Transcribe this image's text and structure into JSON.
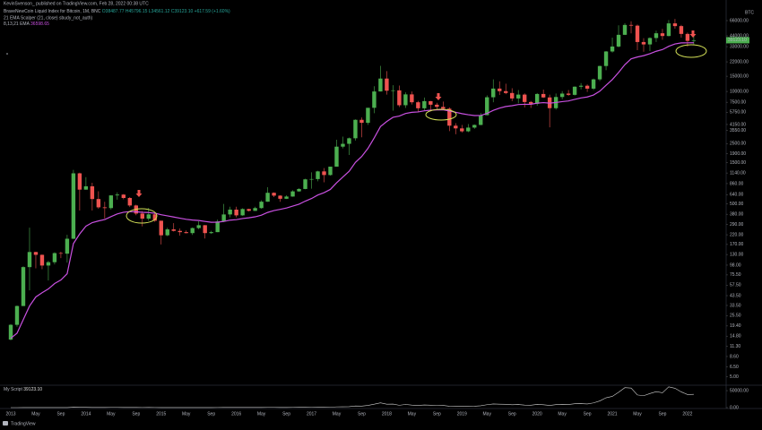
{
  "header": {
    "publisher": "KevinSvenson_ published on TradingView.com, Feb 28, 2022 00:38 UTC",
    "symbol": "BraveNewCoin Liquid Index for Bitcoin, 1M, BNC",
    "ohlc_text": "O38487.77 H45796.15 L34561.12 C39123.10 +617.59 (+1.60%)",
    "indicator_1": "21 EMA Scalper (21, close) sbudy_not_auth)",
    "indicator_2": "8,13,21 EMA",
    "indicator_2_value": "36598.65"
  },
  "chart_data": [
    {
      "type": "candlestick",
      "currency": "BTC",
      "log_scale": true,
      "price_tag": "39123.10",
      "up_color": "#4caf50",
      "down_color": "#ef5350",
      "ema_color": "#c850e0",
      "categories": [
        "2013",
        null,
        null,
        null,
        "May",
        null,
        null,
        null,
        "Sep",
        null,
        null,
        null,
        "2014",
        null,
        null,
        null,
        "May",
        null,
        null,
        null,
        "Sep",
        null,
        null,
        null,
        "2015",
        null,
        null,
        null,
        "May",
        null,
        null,
        null,
        "Sep",
        null,
        null,
        null,
        "2016",
        null,
        null,
        null,
        "May",
        null,
        null,
        null,
        "Sep",
        null,
        null,
        null,
        "2017",
        null,
        null,
        null,
        "May",
        null,
        null,
        null,
        "Sep",
        null,
        null,
        null,
        "2018",
        null,
        null,
        null,
        "May",
        null,
        null,
        null,
        "Sep",
        null,
        null,
        null,
        "2019",
        null,
        null,
        null,
        "May",
        null,
        null,
        null,
        "Sep",
        null,
        null,
        null,
        "2020",
        null,
        null,
        null,
        "May",
        null,
        null,
        null,
        "Sep",
        null,
        null,
        null,
        "2021",
        null,
        null,
        null,
        "May",
        null,
        null,
        null,
        "Sep",
        null,
        null,
        null,
        "2022",
        null
      ],
      "ohlc": [
        [
          13.5,
          20.4,
          13.2,
          20
        ],
        [
          20,
          33.5,
          19,
          33
        ],
        [
          33,
          95,
          33,
          93
        ],
        [
          93,
          266,
          50,
          139
        ],
        [
          139,
          140,
          90,
          129
        ],
        [
          129,
          130,
          88,
          97
        ],
        [
          97,
          110,
          65,
          106
        ],
        [
          106,
          138,
          100,
          135
        ],
        [
          135,
          140,
          118,
          133
        ],
        [
          133,
          220,
          105,
          198
        ],
        [
          198,
          1240,
          196,
          1130
        ],
        [
          1130,
          1150,
          420,
          732
        ],
        [
          732,
          1020,
          730,
          800
        ],
        [
          800,
          880,
          420,
          570
        ],
        [
          570,
          700,
          440,
          457
        ],
        [
          457,
          530,
          340,
          448
        ],
        [
          448,
          630,
          430,
          628
        ],
        [
          628,
          680,
          560,
          641
        ],
        [
          641,
          650,
          565,
          586
        ],
        [
          586,
          600,
          460,
          480
        ],
        [
          480,
          490,
          370,
          387
        ],
        [
          387,
          415,
          275,
          338
        ],
        [
          338,
          450,
          320,
          379
        ],
        [
          379,
          390,
          310,
          320
        ],
        [
          320,
          320,
          170,
          217
        ],
        [
          217,
          265,
          212,
          254
        ],
        [
          254,
          300,
          240,
          244
        ],
        [
          244,
          260,
          215,
          236
        ],
        [
          236,
          247,
          228,
          230
        ],
        [
          230,
          267,
          219,
          263
        ],
        [
          263,
          315,
          255,
          284
        ],
        [
          284,
          285,
          199,
          230
        ],
        [
          230,
          245,
          225,
          236
        ],
        [
          236,
          330,
          236,
          314
        ],
        [
          314,
          500,
          310,
          378
        ],
        [
          378,
          465,
          350,
          430
        ],
        [
          430,
          465,
          350,
          369
        ],
        [
          369,
          445,
          365,
          437
        ],
        [
          437,
          440,
          410,
          416
        ],
        [
          416,
          465,
          415,
          448
        ],
        [
          448,
          550,
          440,
          531
        ],
        [
          531,
          780,
          530,
          673
        ],
        [
          673,
          680,
          600,
          624
        ],
        [
          624,
          630,
          530,
          574
        ],
        [
          574,
          630,
          570,
          609
        ],
        [
          609,
          720,
          605,
          699
        ],
        [
          699,
          760,
          690,
          745
        ],
        [
          745,
          980,
          740,
          963
        ],
        [
          963,
          1160,
          750,
          970
        ],
        [
          970,
          1210,
          915,
          1190
        ],
        [
          1190,
          1300,
          890,
          1080
        ],
        [
          1080,
          1350,
          1060,
          1350
        ],
        [
          1350,
          2760,
          1350,
          2300
        ],
        [
          2300,
          3000,
          2200,
          2480
        ],
        [
          2480,
          2930,
          1840,
          2875
        ],
        [
          2875,
          4760,
          2710,
          4700
        ],
        [
          4700,
          5000,
          2950,
          4340
        ],
        [
          4340,
          6470,
          4110,
          6470
        ],
        [
          6470,
          11500,
          5600,
          10000
        ],
        [
          10000,
          19800,
          10000,
          14100
        ],
        [
          14100,
          17200,
          9200,
          10200
        ],
        [
          10200,
          11800,
          6000,
          10300
        ],
        [
          10300,
          11700,
          6600,
          6930
        ],
        [
          6930,
          9760,
          6450,
          9250
        ],
        [
          9250,
          9990,
          7070,
          7500
        ],
        [
          7500,
          7780,
          5790,
          6390
        ],
        [
          6390,
          8500,
          6080,
          7730
        ],
        [
          7730,
          7760,
          5880,
          7030
        ],
        [
          7030,
          7400,
          6120,
          6630
        ],
        [
          6630,
          7650,
          6180,
          6320
        ],
        [
          6320,
          6550,
          3480,
          4020
        ],
        [
          4020,
          4300,
          3200,
          3740
        ],
        [
          3740,
          4100,
          3350,
          3460
        ],
        [
          3460,
          4200,
          3380,
          3820
        ],
        [
          3820,
          4150,
          3700,
          4100
        ],
        [
          4100,
          5640,
          4070,
          5320
        ],
        [
          5320,
          9000,
          5300,
          8570
        ],
        [
          8570,
          13800,
          7500,
          10800
        ],
        [
          10800,
          13100,
          9100,
          10080
        ],
        [
          10080,
          12300,
          9300,
          9600
        ],
        [
          9600,
          10900,
          7730,
          8300
        ],
        [
          8300,
          10400,
          7300,
          9200
        ],
        [
          9200,
          9500,
          6550,
          7550
        ],
        [
          7550,
          7750,
          6440,
          7200
        ],
        [
          7200,
          9580,
          6850,
          9350
        ],
        [
          9350,
          10500,
          8400,
          8530
        ],
        [
          8530,
          9190,
          3850,
          6410
        ],
        [
          6410,
          9470,
          6170,
          8630
        ],
        [
          8630,
          10070,
          8130,
          9450
        ],
        [
          9450,
          10380,
          8900,
          9140
        ],
        [
          9140,
          11450,
          8980,
          11350
        ],
        [
          11350,
          12480,
          10570,
          11650
        ],
        [
          11650,
          12050,
          9880,
          10780
        ],
        [
          10780,
          14100,
          10400,
          13800
        ],
        [
          13800,
          19900,
          13200,
          19700
        ],
        [
          19700,
          29300,
          17600,
          29000
        ],
        [
          29000,
          41900,
          28100,
          33100
        ],
        [
          33100,
          58300,
          32300,
          45200
        ],
        [
          45200,
          61700,
          44900,
          58800
        ],
        [
          58800,
          64800,
          47000,
          57700
        ],
        [
          57700,
          59500,
          30000,
          37300
        ],
        [
          37300,
          41300,
          28800,
          35000
        ],
        [
          35000,
          42300,
          29300,
          41500
        ],
        [
          41500,
          50500,
          37300,
          47100
        ],
        [
          47100,
          52900,
          39600,
          43800
        ],
        [
          43800,
          67000,
          43300,
          61300
        ],
        [
          61300,
          69000,
          53300,
          57000
        ],
        [
          57000,
          59000,
          42000,
          46300
        ],
        [
          46300,
          47900,
          33000,
          38487.77
        ],
        [
          38487.77,
          45796.15,
          34561.12,
          39123.1
        ]
      ],
      "ema": [
        14,
        16,
        23,
        33,
        42,
        47,
        52,
        60,
        66,
        78,
        174,
        225,
        277,
        304,
        318,
        330,
        357,
        383,
        401,
        408,
        406,
        400,
        398,
        391,
        375,
        364,
        353,
        342,
        332,
        326,
        322,
        314,
        307,
        308,
        314,
        325,
        329,
        339,
        346,
        355,
        371,
        399,
        419,
        433,
        449,
        472,
        497,
        539,
        578,
        634,
        675,
        736,
        878,
        1024,
        1192,
        1511,
        1768,
        2195,
        2905,
        3923,
        4494,
        5022,
        5195,
        5563,
        5739,
        5798,
        5973,
        6069,
        6120,
        6137,
        5944,
        5743,
        5536,
        5380,
        5264,
        5270,
        5570,
        6045,
        6412,
        6702,
        6847,
        7061,
        7105,
        7114,
        7317,
        7427,
        7334,
        7453,
        7635,
        7772,
        8097,
        8420,
        8634,
        9103,
        10066,
        11787,
        13724,
        16586,
        20424,
        23818,
        25044,
        25949,
        27363,
        29157,
        30488,
        33289,
        35445,
        36432,
        36500,
        36598.65
      ],
      "ylim": [
        4.2,
        90000
      ],
      "yticks": [
        {
          "value": 66000,
          "label": "66000.00"
        },
        {
          "value": 44000,
          "label": "44000.00"
        },
        {
          "value": 33000,
          "label": "33000.00"
        },
        {
          "value": 22000,
          "label": "22000.00"
        },
        {
          "value": 15000,
          "label": "15000.00"
        },
        {
          "value": 10000,
          "label": "10000.00"
        },
        {
          "value": 7500,
          "label": "7500.00"
        },
        {
          "value": 5750,
          "label": "5750.00"
        },
        {
          "value": 4150,
          "label": "4150.00"
        },
        {
          "value": 3550,
          "label": "3550.00"
        },
        {
          "value": 2500,
          "label": "2500.00"
        },
        {
          "value": 1900,
          "label": "1900.00"
        },
        {
          "value": 1500,
          "label": "1500.00"
        },
        {
          "value": 1140,
          "label": "1140.00"
        },
        {
          "value": 860,
          "label": "860.00"
        },
        {
          "value": 640,
          "label": "640.00"
        },
        {
          "value": 500,
          "label": "500.00"
        },
        {
          "value": 380,
          "label": "380.00"
        },
        {
          "value": 290,
          "label": "290.00"
        },
        {
          "value": 220,
          "label": "220.00"
        },
        {
          "value": 170,
          "label": "170.00"
        },
        {
          "value": 130,
          "label": "130.00"
        },
        {
          "value": 98,
          "label": "98.00"
        },
        {
          "value": 75.5,
          "label": "75.50"
        },
        {
          "value": 57.5,
          "label": "57.50"
        },
        {
          "value": 43.5,
          "label": "43.50"
        },
        {
          "value": 33.5,
          "label": "33.50"
        },
        {
          "value": 25.5,
          "label": "25.50"
        },
        {
          "value": 19.4,
          "label": "19.40"
        },
        {
          "value": 14.8,
          "label": "14.80"
        },
        {
          "value": 11.3,
          "label": "11.30"
        },
        {
          "value": 8.6,
          "label": "8.60"
        },
        {
          "value": 6.5,
          "label": "6.50"
        },
        {
          "value": 5,
          "label": "5.00"
        }
      ]
    },
    {
      "type": "line",
      "title": "My Script",
      "value_label": "39123.10",
      "color": "#d0d0d0",
      "ylim": [
        0,
        66000
      ],
      "yticks": [
        {
          "value": 50000,
          "label": "50000.00"
        },
        {
          "value": 0,
          "label": "0.00"
        }
      ]
    }
  ],
  "footer": "TradingView"
}
